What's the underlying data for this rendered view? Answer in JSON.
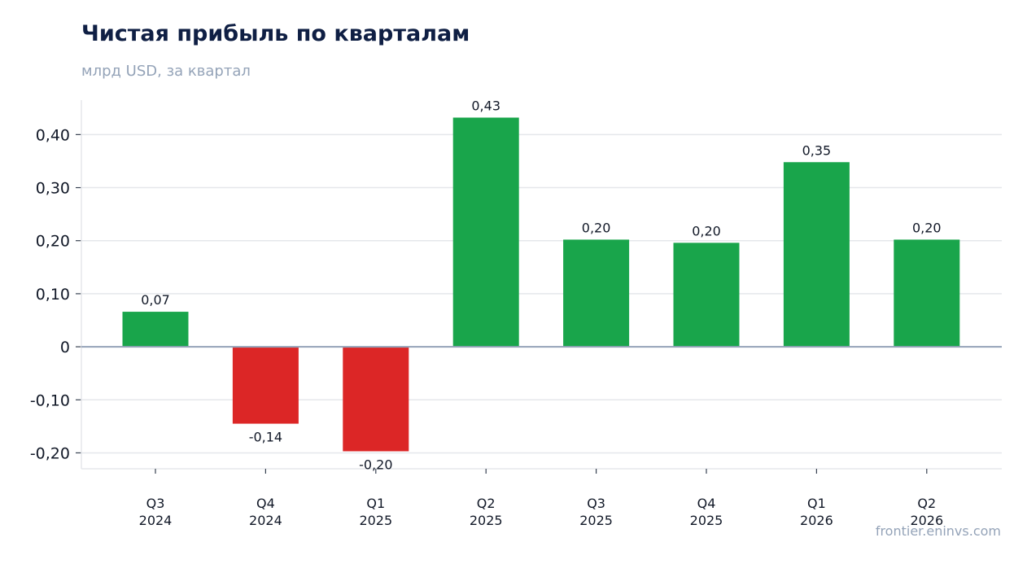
{
  "header": {
    "title": "Чистая прибыль по кварталам",
    "subtitle": "млрд USD, за квартал"
  },
  "footer": {
    "source": "frontier.eninvs.com"
  },
  "colors": {
    "positive": "#19a54b",
    "negative": "#dc2626",
    "grid": "#e5e7eb",
    "zero_line": "#94a3b8",
    "axis": "#e5e7eb"
  },
  "chart_data": {
    "type": "bar",
    "categories": [
      [
        "Q3",
        "2024"
      ],
      [
        "Q4",
        "2024"
      ],
      [
        "Q1",
        "2025"
      ],
      [
        "Q2",
        "2025"
      ],
      [
        "Q3",
        "2025"
      ],
      [
        "Q4",
        "2025"
      ],
      [
        "Q1",
        "2026"
      ],
      [
        "Q2",
        "2026"
      ]
    ],
    "values": [
      0.066,
      -0.145,
      -0.197,
      0.432,
      0.202,
      0.196,
      0.348,
      0.202
    ],
    "data_labels": [
      "0,07",
      "-0,14",
      "-0,20",
      "0,43",
      "0,20",
      "0,20",
      "0,35",
      "0,20"
    ],
    "yticks": [
      -0.2,
      -0.1,
      0,
      0.1,
      0.2,
      0.3,
      0.4
    ],
    "ytick_labels": [
      "-0,20",
      "-0,10",
      "0",
      "0,10",
      "0,20",
      "0,30",
      "0,40"
    ],
    "ylim": [
      -0.23,
      0.465
    ],
    "grid": true,
    "xlabel": "",
    "ylabel": ""
  }
}
